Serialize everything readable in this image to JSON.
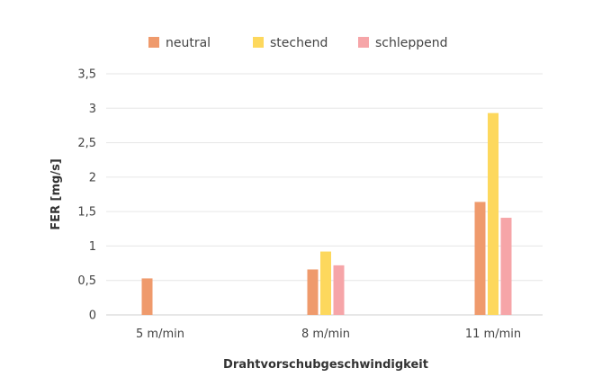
{
  "chart_data": {
    "type": "bar",
    "title": "",
    "xlabel": "Drahtvorschubgeschwindigkeit",
    "ylabel": "FER [mg/s]",
    "categories": [
      "5 m/min",
      "8 m/min",
      "11 m/min"
    ],
    "ylim": [
      0,
      3.5
    ],
    "yticks": [
      {
        "value": 0,
        "label": "0"
      },
      {
        "value": 0.5,
        "label": "0,5"
      },
      {
        "value": 1,
        "label": "1"
      },
      {
        "value": 1.5,
        "label": "1,5"
      },
      {
        "value": 2,
        "label": "2"
      },
      {
        "value": 2.5,
        "label": "2,5"
      },
      {
        "value": 3,
        "label": "3"
      },
      {
        "value": 3.5,
        "label": "3,5"
      }
    ],
    "grid": true,
    "legend_position": "top-center",
    "series": [
      {
        "name": "neutral",
        "color": "#ef9a6c",
        "values": [
          0.53,
          0.66,
          1.64
        ]
      },
      {
        "name": "stechend",
        "color": "#fdd85d",
        "values": [
          null,
          0.92,
          2.93
        ]
      },
      {
        "name": "schleppend",
        "color": "#f6a5a8",
        "values": [
          null,
          0.72,
          1.41
        ]
      }
    ]
  }
}
